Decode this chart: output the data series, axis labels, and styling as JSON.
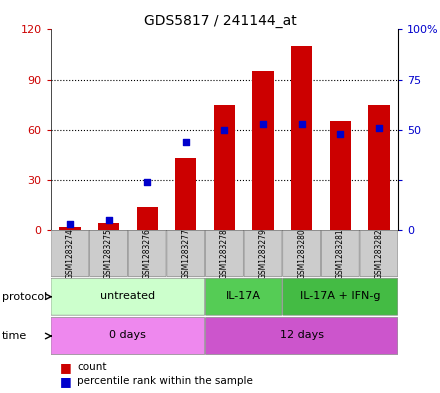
{
  "title": "GDS5817 / 241144_at",
  "samples": [
    "GSM1283274",
    "GSM1283275",
    "GSM1283276",
    "GSM1283277",
    "GSM1283278",
    "GSM1283279",
    "GSM1283280",
    "GSM1283281",
    "GSM1283282"
  ],
  "counts": [
    2,
    4,
    14,
    43,
    75,
    95,
    110,
    65,
    75
  ],
  "percentile_ranks": [
    3,
    5,
    24,
    44,
    50,
    53,
    53,
    48,
    51
  ],
  "ylim_left": [
    0,
    120
  ],
  "ylim_right": [
    0,
    100
  ],
  "yticks_left": [
    0,
    30,
    60,
    90,
    120
  ],
  "yticks_right": [
    0,
    25,
    50,
    75,
    100
  ],
  "ytick_labels_left": [
    "0",
    "30",
    "60",
    "90",
    "120"
  ],
  "ytick_labels_right": [
    "0",
    "",
    "50",
    "75",
    "100%"
  ],
  "bar_color": "#cc0000",
  "dot_color": "#0000cc",
  "grid_color": "#000000",
  "protocol_groups": [
    {
      "label": "untreated",
      "start": 0,
      "end": 3,
      "color": "#ccffcc"
    },
    {
      "label": "IL-17A",
      "start": 4,
      "end": 5,
      "color": "#55cc55"
    },
    {
      "label": "IL-17A + IFN-g",
      "start": 6,
      "end": 8,
      "color": "#44bb44"
    }
  ],
  "time_groups": [
    {
      "label": "0 days",
      "start": 0,
      "end": 3,
      "color": "#ee88ee"
    },
    {
      "label": "12 days",
      "start": 4,
      "end": 8,
      "color": "#cc55cc"
    }
  ],
  "protocol_label": "protocol",
  "time_label": "time",
  "legend_count_label": "count",
  "legend_pct_label": "percentile rank within the sample",
  "bar_width": 0.55,
  "title_fontsize": 10,
  "axis_label_color_left": "#cc0000",
  "axis_label_color_right": "#0000cc",
  "sample_box_color": "#cccccc",
  "right_ytick_labels": [
    "0",
    "",
    "50",
    "75",
    "100%"
  ]
}
